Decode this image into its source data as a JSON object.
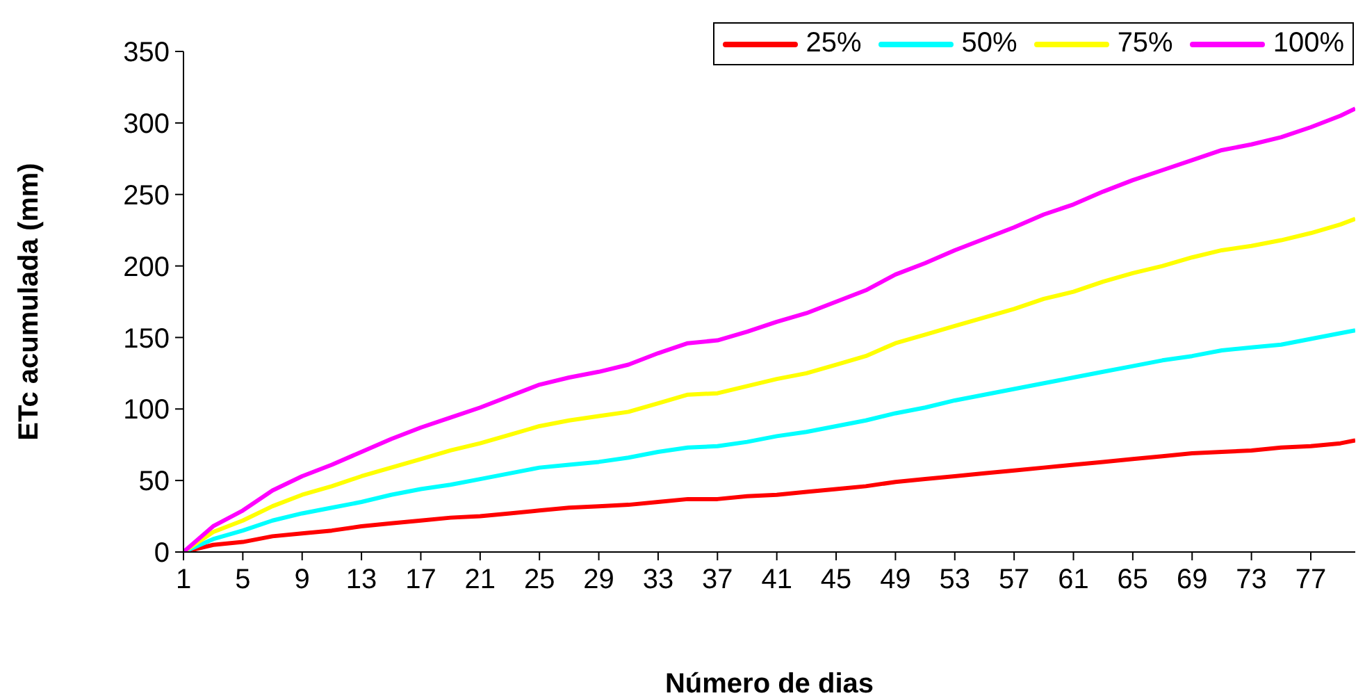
{
  "chart_data": {
    "type": "line",
    "xlabel": "Número de dias",
    "ylabel": "ETc acumulada (mm)",
    "x": [
      1,
      3,
      5,
      7,
      9,
      11,
      13,
      15,
      17,
      19,
      21,
      23,
      25,
      27,
      29,
      31,
      33,
      35,
      37,
      39,
      41,
      43,
      45,
      47,
      49,
      51,
      53,
      55,
      57,
      59,
      61,
      63,
      65,
      67,
      69,
      71,
      73,
      75,
      77,
      79,
      80
    ],
    "xlim": [
      1,
      80
    ],
    "xticks": [
      1,
      5,
      9,
      13,
      17,
      21,
      25,
      29,
      33,
      37,
      41,
      45,
      49,
      53,
      57,
      61,
      65,
      69,
      73,
      77
    ],
    "ylim": [
      0,
      350
    ],
    "yticks": [
      0,
      50,
      100,
      150,
      200,
      250,
      300,
      350
    ],
    "grid": false,
    "legend": "top right",
    "marker": "none",
    "line_style": "solid",
    "series": [
      {
        "name": "25%",
        "color": "#ff0000",
        "values": [
          0,
          5,
          7,
          11,
          13,
          15,
          18,
          20,
          22,
          24,
          25,
          27,
          29,
          31,
          32,
          33,
          35,
          37,
          37,
          39,
          40,
          42,
          44,
          46,
          49,
          51,
          53,
          55,
          57,
          59,
          61,
          63,
          65,
          67,
          69,
          70,
          71,
          73,
          74,
          76,
          78
        ]
      },
      {
        "name": "50%",
        "color": "#00ffff",
        "values": [
          0,
          9,
          15,
          22,
          27,
          31,
          35,
          40,
          44,
          47,
          51,
          55,
          59,
          61,
          63,
          66,
          70,
          73,
          74,
          77,
          81,
          84,
          88,
          92,
          97,
          101,
          106,
          110,
          114,
          118,
          122,
          126,
          130,
          134,
          137,
          141,
          143,
          145,
          149,
          153,
          155
        ]
      },
      {
        "name": "75%",
        "color": "#ffff00",
        "values": [
          0,
          14,
          22,
          32,
          40,
          46,
          53,
          59,
          65,
          71,
          76,
          82,
          88,
          92,
          95,
          98,
          104,
          110,
          111,
          116,
          121,
          125,
          131,
          137,
          146,
          152,
          158,
          164,
          170,
          177,
          182,
          189,
          195,
          200,
          206,
          211,
          214,
          218,
          223,
          229,
          233
        ]
      },
      {
        "name": "100%",
        "color": "#ff00ff",
        "values": [
          0,
          18,
          29,
          43,
          53,
          61,
          70,
          79,
          87,
          94,
          101,
          109,
          117,
          122,
          126,
          131,
          139,
          146,
          148,
          154,
          161,
          167,
          175,
          183,
          194,
          202,
          211,
          219,
          227,
          236,
          243,
          252,
          260,
          267,
          274,
          281,
          285,
          290,
          297,
          305,
          310
        ]
      }
    ]
  }
}
